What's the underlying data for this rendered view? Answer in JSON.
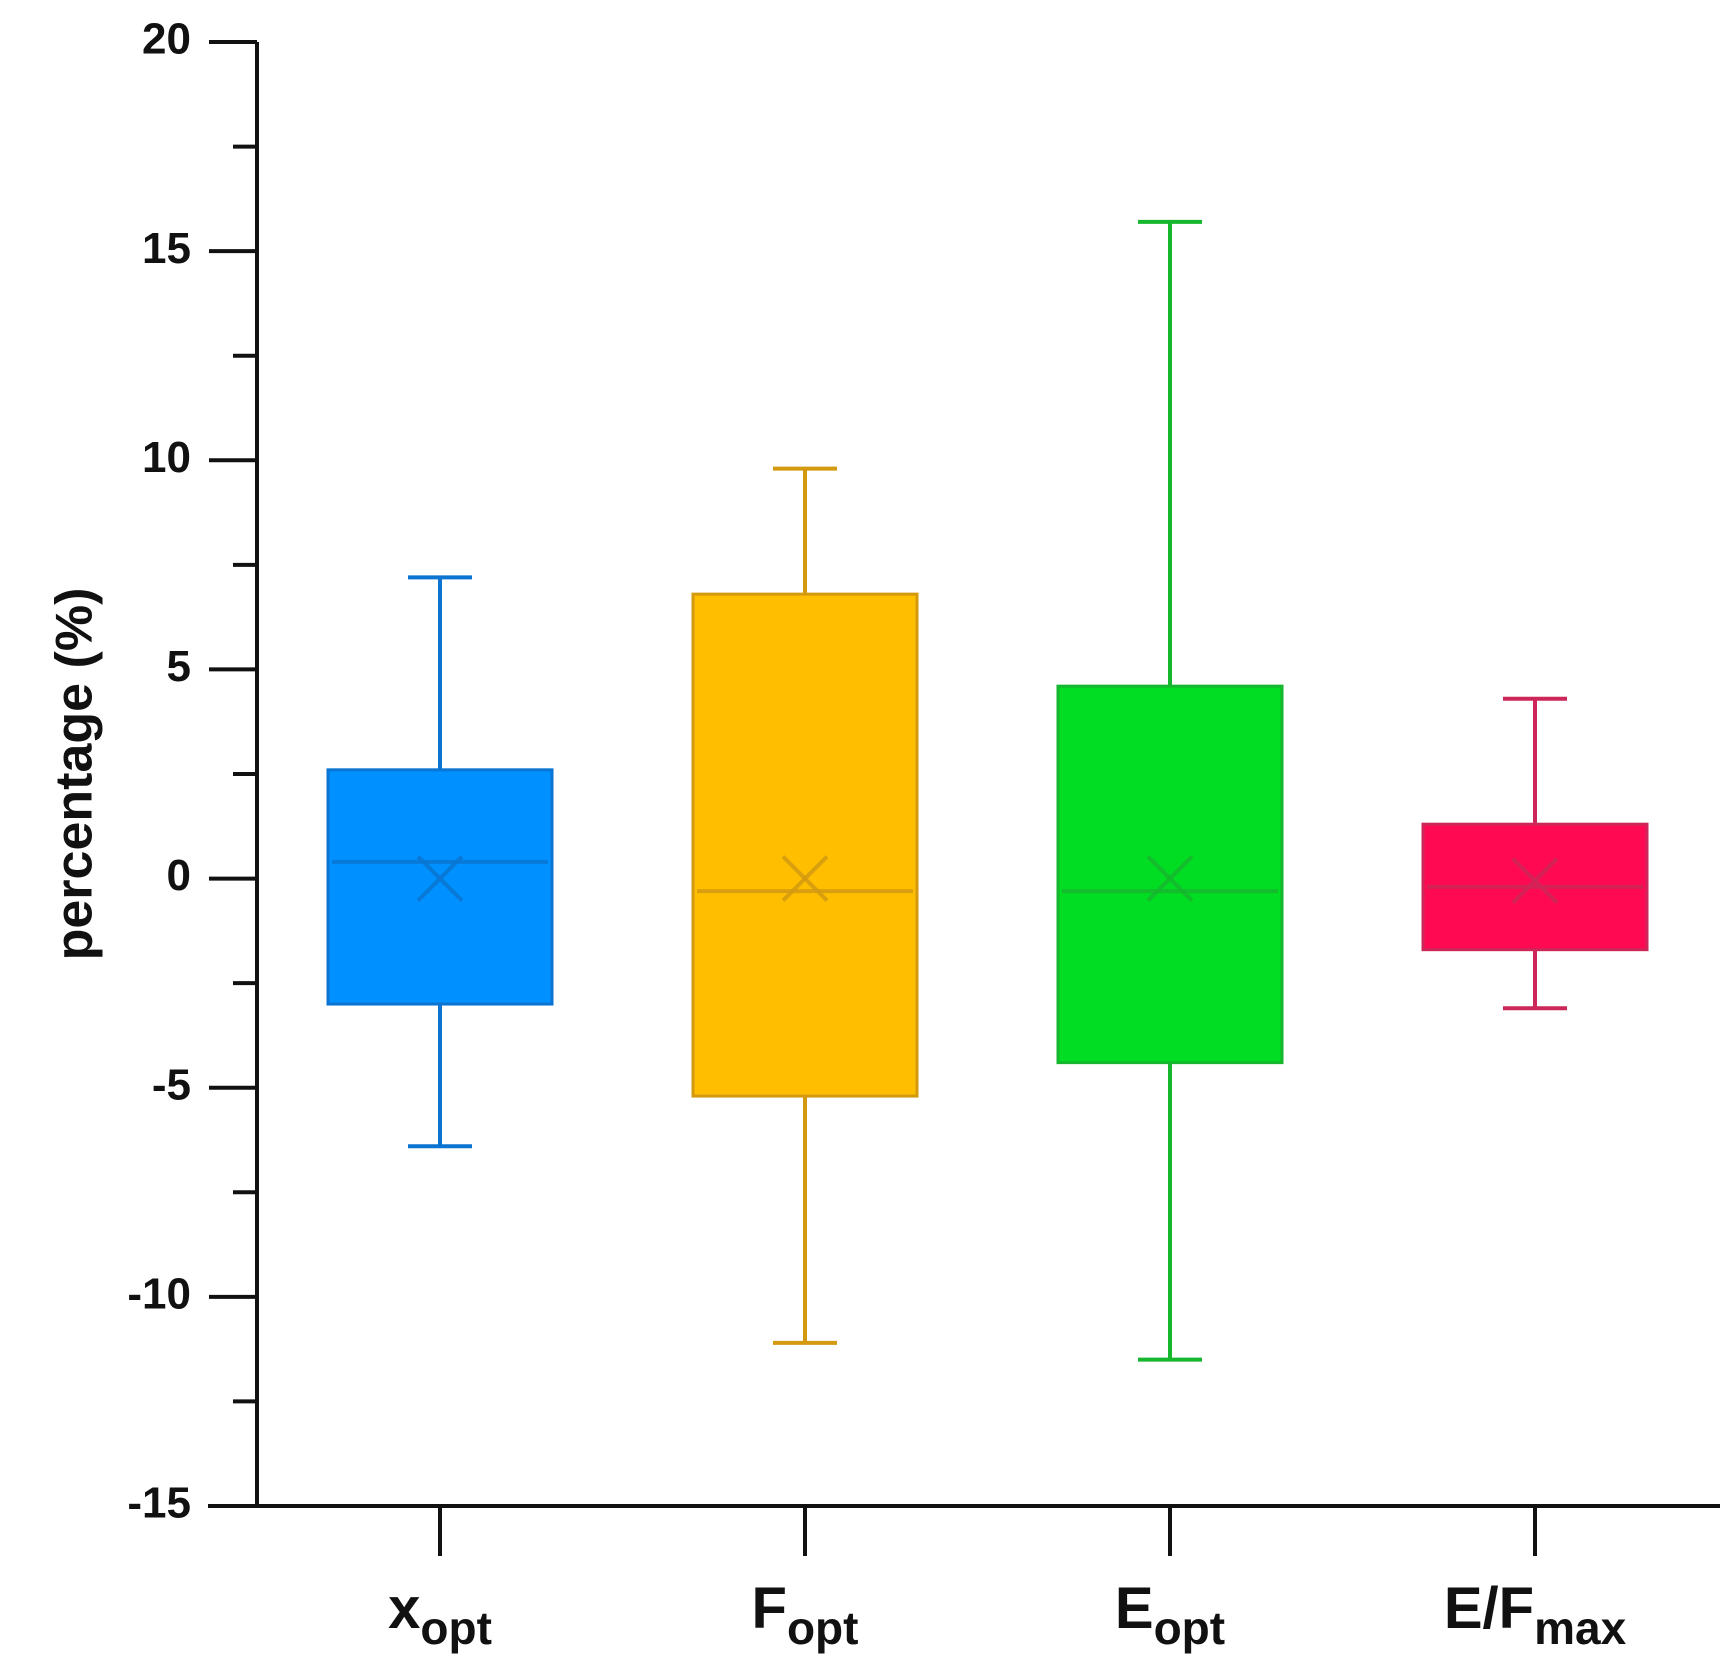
{
  "chart_data": {
    "type": "box",
    "title": "",
    "ylabel": "percentage (%)",
    "xlabel": "",
    "ylim": [
      -15,
      20
    ],
    "yticks": [
      20,
      15,
      10,
      5,
      0,
      -5,
      -10,
      -15
    ],
    "grid": false,
    "categories": [
      {
        "main": "x",
        "sub": "opt"
      },
      {
        "main": "F",
        "sub": "opt"
      },
      {
        "main": "E",
        "sub": "opt"
      },
      {
        "main": "E/F",
        "sub": "max"
      }
    ],
    "boxes": [
      {
        "whisker_low": -6.4,
        "q1": -3.0,
        "median": 0.4,
        "q3": 2.6,
        "whisker_high": 7.2,
        "mean": 0.0,
        "fill": "#0090FF",
        "stroke": "#0B75D1"
      },
      {
        "whisker_low": -11.1,
        "q1": -5.2,
        "median": -0.3,
        "q3": 6.8,
        "whisker_high": 9.8,
        "mean": 0.0,
        "fill": "#FFBE00",
        "stroke": "#D39A10"
      },
      {
        "whisker_low": -11.5,
        "q1": -4.4,
        "median": -0.3,
        "q3": 4.6,
        "whisker_high": 15.7,
        "mean": 0.0,
        "fill": "#00DD22",
        "stroke": "#16B72E"
      },
      {
        "whisker_low": -3.1,
        "q1": -1.7,
        "median": -0.2,
        "q3": 1.3,
        "whisker_high": 4.3,
        "mean": -0.05,
        "fill": "#FF0A52",
        "stroke": "#CC2758"
      }
    ]
  }
}
